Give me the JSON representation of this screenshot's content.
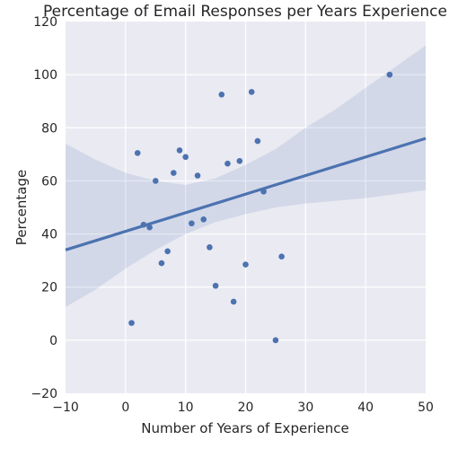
{
  "chart_data": {
    "type": "scatter",
    "title": "Percentage of Email Responses per Years Experience",
    "xlabel": "Number of Years of Experience",
    "ylabel": "Percentage",
    "xlim": [
      -10,
      50
    ],
    "ylim": [
      -20,
      120
    ],
    "xticks": [
      -10,
      0,
      10,
      20,
      30,
      40,
      50
    ],
    "yticks": [
      -20,
      0,
      20,
      40,
      60,
      80,
      100,
      120
    ],
    "xtick_labels": [
      "−10",
      "0",
      "10",
      "20",
      "30",
      "40",
      "50"
    ],
    "ytick_labels": [
      "−20",
      "0",
      "20",
      "40",
      "60",
      "80",
      "100",
      "120"
    ],
    "grid": true,
    "points": [
      {
        "x": 1,
        "y": 6.5
      },
      {
        "x": 2,
        "y": 70.5
      },
      {
        "x": 3,
        "y": 43.5
      },
      {
        "x": 4,
        "y": 42.5
      },
      {
        "x": 5,
        "y": 60
      },
      {
        "x": 6,
        "y": 29
      },
      {
        "x": 7,
        "y": 33.5
      },
      {
        "x": 8,
        "y": 63
      },
      {
        "x": 9,
        "y": 71.5
      },
      {
        "x": 10,
        "y": 69
      },
      {
        "x": 11,
        "y": 44
      },
      {
        "x": 12,
        "y": 62
      },
      {
        "x": 13,
        "y": 45.5
      },
      {
        "x": 14,
        "y": 35
      },
      {
        "x": 15,
        "y": 20.5
      },
      {
        "x": 16,
        "y": 92.5
      },
      {
        "x": 17,
        "y": 66.5
      },
      {
        "x": 18,
        "y": 14.5
      },
      {
        "x": 19,
        "y": 67.5
      },
      {
        "x": 20,
        "y": 28.5
      },
      {
        "x": 21,
        "y": 93.5
      },
      {
        "x": 22,
        "y": 75
      },
      {
        "x": 23,
        "y": 56
      },
      {
        "x": 25,
        "y": 0
      },
      {
        "x": 26,
        "y": 31.5
      },
      {
        "x": 44,
        "y": 100
      }
    ],
    "regression_line": {
      "x": [
        -10,
        50
      ],
      "y": [
        34,
        76
      ]
    },
    "confidence_band": {
      "x": [
        -10,
        -5,
        0,
        5,
        10,
        15,
        20,
        25,
        30,
        35,
        40,
        45,
        50
      ],
      "upper": [
        74,
        68,
        63,
        60,
        58.5,
        61,
        66,
        72,
        80,
        87,
        95,
        103,
        111
      ],
      "lower": [
        12.5,
        19,
        27,
        34,
        40,
        44.5,
        47.5,
        50,
        51.5,
        52.5,
        53.5,
        55,
        56.5
      ]
    },
    "colors": {
      "background": "#EAEAF2",
      "grid": "#FFFFFF",
      "point": "#4C72B0",
      "line": "#4C72B0",
      "band": "#4C72B0"
    }
  }
}
